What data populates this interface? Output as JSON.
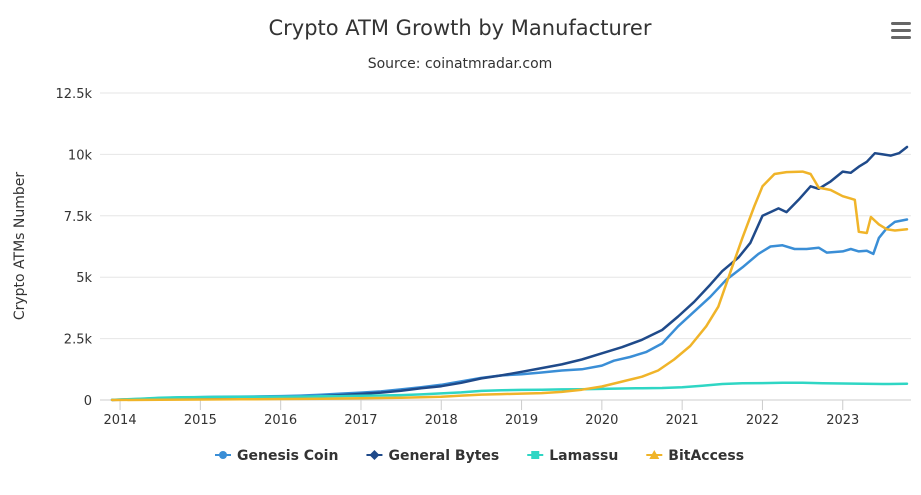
{
  "chart_data": {
    "type": "line",
    "title": "Crypto ATM Growth by Manufacturer",
    "subtitle": "Source: coinatmradar.com",
    "xlabel": "",
    "ylabel": "Crypto ATMs Number",
    "xlim": [
      2013.75,
      2023.85
    ],
    "ylim": [
      0,
      12500
    ],
    "x_ticks": [
      2014,
      2015,
      2016,
      2017,
      2018,
      2019,
      2020,
      2021,
      2022,
      2023
    ],
    "x_tick_labels": [
      "2014",
      "2015",
      "2016",
      "2017",
      "2018",
      "2019",
      "2020",
      "2021",
      "2022",
      "2023"
    ],
    "y_ticks": [
      0,
      2500,
      5000,
      7500,
      10000,
      12500
    ],
    "y_tick_labels": [
      "0",
      "2.5k",
      "5k",
      "7.5k",
      "10k",
      "12.5k"
    ],
    "grid": true,
    "legend_position": "bottom-center",
    "series": [
      {
        "name": "Genesis Coin",
        "color": "#3a8ed6",
        "marker": "circle",
        "points": [
          [
            2013.9,
            5
          ],
          [
            2014.0,
            15
          ],
          [
            2014.25,
            40
          ],
          [
            2014.5,
            80
          ],
          [
            2014.75,
            100
          ],
          [
            2015.0,
            120
          ],
          [
            2015.25,
            130
          ],
          [
            2015.5,
            140
          ],
          [
            2015.75,
            145
          ],
          [
            2016.0,
            160
          ],
          [
            2016.25,
            180
          ],
          [
            2016.5,
            210
          ],
          [
            2016.75,
            260
          ],
          [
            2017.0,
            300
          ],
          [
            2017.25,
            350
          ],
          [
            2017.5,
            430
          ],
          [
            2017.75,
            520
          ],
          [
            2018.0,
            620
          ],
          [
            2018.25,
            760
          ],
          [
            2018.5,
            900
          ],
          [
            2018.75,
            1000
          ],
          [
            2019.0,
            1050
          ],
          [
            2019.25,
            1120
          ],
          [
            2019.5,
            1200
          ],
          [
            2019.75,
            1250
          ],
          [
            2020.0,
            1400
          ],
          [
            2020.15,
            1600
          ],
          [
            2020.35,
            1750
          ],
          [
            2020.55,
            1950
          ],
          [
            2020.75,
            2300
          ],
          [
            2020.95,
            3000
          ],
          [
            2021.15,
            3600
          ],
          [
            2021.35,
            4200
          ],
          [
            2021.55,
            4900
          ],
          [
            2021.75,
            5400
          ],
          [
            2021.95,
            5950
          ],
          [
            2022.1,
            6250
          ],
          [
            2022.25,
            6300
          ],
          [
            2022.4,
            6150
          ],
          [
            2022.55,
            6150
          ],
          [
            2022.7,
            6200
          ],
          [
            2022.8,
            6000
          ],
          [
            2023.0,
            6050
          ],
          [
            2023.1,
            6150
          ],
          [
            2023.2,
            6050
          ],
          [
            2023.3,
            6080
          ],
          [
            2023.38,
            5950
          ],
          [
            2023.45,
            6600
          ],
          [
            2023.55,
            7000
          ],
          [
            2023.65,
            7250
          ],
          [
            2023.8,
            7350
          ]
        ]
      },
      {
        "name": "General Bytes",
        "color": "#1f4a8a",
        "marker": "diamond",
        "points": [
          [
            2013.9,
            5
          ],
          [
            2014.0,
            10
          ],
          [
            2014.25,
            20
          ],
          [
            2014.5,
            30
          ],
          [
            2014.75,
            40
          ],
          [
            2015.0,
            50
          ],
          [
            2015.25,
            60
          ],
          [
            2015.5,
            70
          ],
          [
            2015.75,
            80
          ],
          [
            2016.0,
            100
          ],
          [
            2016.25,
            130
          ],
          [
            2016.5,
            160
          ],
          [
            2016.75,
            200
          ],
          [
            2017.0,
            250
          ],
          [
            2017.25,
            300
          ],
          [
            2017.5,
            380
          ],
          [
            2017.75,
            480
          ],
          [
            2018.0,
            560
          ],
          [
            2018.25,
            700
          ],
          [
            2018.5,
            880
          ],
          [
            2018.75,
            1000
          ],
          [
            2019.0,
            1150
          ],
          [
            2019.25,
            1300
          ],
          [
            2019.5,
            1450
          ],
          [
            2019.75,
            1650
          ],
          [
            2020.0,
            1900
          ],
          [
            2020.25,
            2150
          ],
          [
            2020.5,
            2450
          ],
          [
            2020.75,
            2850
          ],
          [
            2020.95,
            3400
          ],
          [
            2021.15,
            4000
          ],
          [
            2021.35,
            4700
          ],
          [
            2021.5,
            5250
          ],
          [
            2021.7,
            5800
          ],
          [
            2021.85,
            6400
          ],
          [
            2022.0,
            7500
          ],
          [
            2022.1,
            7650
          ],
          [
            2022.2,
            7800
          ],
          [
            2022.3,
            7650
          ],
          [
            2022.45,
            8150
          ],
          [
            2022.6,
            8700
          ],
          [
            2022.7,
            8600
          ],
          [
            2022.85,
            8900
          ],
          [
            2023.0,
            9300
          ],
          [
            2023.1,
            9250
          ],
          [
            2023.2,
            9500
          ],
          [
            2023.3,
            9700
          ],
          [
            2023.4,
            10050
          ],
          [
            2023.5,
            10000
          ],
          [
            2023.6,
            9950
          ],
          [
            2023.7,
            10050
          ],
          [
            2023.8,
            10300
          ]
        ]
      },
      {
        "name": "Lamassu",
        "color": "#2fd6c4",
        "marker": "square",
        "points": [
          [
            2013.9,
            5
          ],
          [
            2014.0,
            20
          ],
          [
            2014.25,
            50
          ],
          [
            2014.5,
            90
          ],
          [
            2014.75,
            110
          ],
          [
            2015.0,
            120
          ],
          [
            2015.25,
            125
          ],
          [
            2015.5,
            130
          ],
          [
            2015.75,
            130
          ],
          [
            2016.0,
            135
          ],
          [
            2016.25,
            140
          ],
          [
            2016.5,
            150
          ],
          [
            2016.75,
            160
          ],
          [
            2017.0,
            170
          ],
          [
            2017.25,
            185
          ],
          [
            2017.5,
            200
          ],
          [
            2017.75,
            230
          ],
          [
            2018.0,
            270
          ],
          [
            2018.25,
            310
          ],
          [
            2018.5,
            370
          ],
          [
            2018.75,
            400
          ],
          [
            2019.0,
            410
          ],
          [
            2019.25,
            420
          ],
          [
            2019.5,
            430
          ],
          [
            2019.75,
            440
          ],
          [
            2020.0,
            450
          ],
          [
            2020.25,
            470
          ],
          [
            2020.5,
            480
          ],
          [
            2020.75,
            490
          ],
          [
            2021.0,
            520
          ],
          [
            2021.25,
            580
          ],
          [
            2021.5,
            650
          ],
          [
            2021.75,
            680
          ],
          [
            2022.0,
            690
          ],
          [
            2022.25,
            700
          ],
          [
            2022.5,
            700
          ],
          [
            2022.75,
            680
          ],
          [
            2023.0,
            670
          ],
          [
            2023.25,
            660
          ],
          [
            2023.5,
            650
          ],
          [
            2023.8,
            660
          ]
        ]
      },
      {
        "name": "BitAccess",
        "color": "#f0b429",
        "marker": "triangle",
        "points": [
          [
            2013.9,
            0
          ],
          [
            2014.5,
            10
          ],
          [
            2015.0,
            20
          ],
          [
            2015.5,
            30
          ],
          [
            2016.0,
            40
          ],
          [
            2016.5,
            50
          ],
          [
            2017.0,
            70
          ],
          [
            2017.5,
            90
          ],
          [
            2017.75,
            110
          ],
          [
            2018.0,
            130
          ],
          [
            2018.25,
            180
          ],
          [
            2018.5,
            220
          ],
          [
            2018.75,
            240
          ],
          [
            2019.0,
            260
          ],
          [
            2019.25,
            280
          ],
          [
            2019.5,
            330
          ],
          [
            2019.75,
            420
          ],
          [
            2020.0,
            550
          ],
          [
            2020.25,
            750
          ],
          [
            2020.5,
            950
          ],
          [
            2020.7,
            1200
          ],
          [
            2020.9,
            1650
          ],
          [
            2021.1,
            2200
          ],
          [
            2021.3,
            3000
          ],
          [
            2021.45,
            3800
          ],
          [
            2021.6,
            5200
          ],
          [
            2021.75,
            6600
          ],
          [
            2021.9,
            7900
          ],
          [
            2022.0,
            8700
          ],
          [
            2022.15,
            9200
          ],
          [
            2022.3,
            9280
          ],
          [
            2022.5,
            9300
          ],
          [
            2022.6,
            9200
          ],
          [
            2022.7,
            8650
          ],
          [
            2022.85,
            8550
          ],
          [
            2023.0,
            8300
          ],
          [
            2023.1,
            8200
          ],
          [
            2023.15,
            8150
          ],
          [
            2023.2,
            6850
          ],
          [
            2023.3,
            6800
          ],
          [
            2023.35,
            7450
          ],
          [
            2023.45,
            7150
          ],
          [
            2023.55,
            6950
          ],
          [
            2023.65,
            6900
          ],
          [
            2023.8,
            6950
          ]
        ]
      }
    ]
  }
}
